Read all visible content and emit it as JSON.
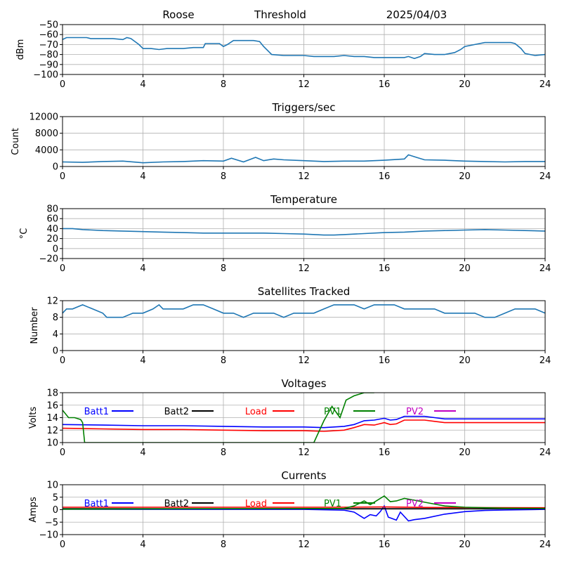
{
  "header": {
    "station": "Roose",
    "mode": "Threshold",
    "date": "2025/04/03"
  },
  "chart_data": [
    {
      "type": "line",
      "title": "",
      "ylabel": "dBm",
      "xlim": [
        0,
        24
      ],
      "xticks": [
        0,
        4,
        8,
        12,
        16,
        20,
        24
      ],
      "ylim": [
        -100,
        -50
      ],
      "yticks": [
        -100,
        -90,
        -80,
        -70,
        -60,
        -50
      ],
      "grid": true,
      "color": "#1f77b4",
      "series": [
        {
          "x": [
            0,
            0.2,
            0.5,
            1.2,
            1.4,
            2.0,
            2.5,
            3.0,
            3.2,
            3.4,
            3.6,
            3.8,
            4.0,
            4.4,
            4.8,
            5.2,
            5.5,
            6.0,
            6.5,
            7.0,
            7.1,
            7.6,
            7.8,
            8.0,
            8.2,
            8.5,
            9.0,
            9.5,
            9.8,
            10.0,
            10.4,
            11.0,
            11.5,
            12.0,
            12.5,
            13.0,
            13.5,
            14.0,
            14.5,
            15.0,
            15.5,
            16.0,
            16.5,
            17.0,
            17.2,
            17.5,
            17.8,
            18.0,
            18.5,
            19.0,
            19.5,
            19.8,
            20.0,
            20.5,
            21.0,
            21.5,
            22.0,
            22.3,
            22.5,
            22.8,
            23.0,
            23.5,
            24.0
          ],
          "y": [
            -65,
            -63,
            -63,
            -63,
            -64,
            -64,
            -64,
            -65,
            -63,
            -64,
            -67,
            -70,
            -74,
            -74,
            -75,
            -74,
            -74,
            -74,
            -73,
            -73,
            -69,
            -69,
            -69,
            -72,
            -70,
            -66,
            -66,
            -66,
            -67,
            -72,
            -80,
            -81,
            -81,
            -81,
            -82,
            -82,
            -82,
            -81,
            -82,
            -82,
            -83,
            -83,
            -83,
            -83,
            -82,
            -84,
            -82,
            -79,
            -80,
            -80,
            -78,
            -75,
            -72,
            -70,
            -68,
            -68,
            -68,
            -68,
            -69,
            -74,
            -79,
            -81,
            -80
          ]
        }
      ]
    },
    {
      "type": "line",
      "title": "Triggers/sec",
      "ylabel": "Count",
      "xlim": [
        0,
        24
      ],
      "xticks": [
        0,
        4,
        8,
        12,
        16,
        20,
        24
      ],
      "ylim": [
        0,
        12000
      ],
      "yticks": [
        0,
        4000,
        8000,
        12000
      ],
      "grid": true,
      "color": "#1f77b4",
      "series": [
        {
          "x": [
            0,
            1,
            2,
            3,
            4,
            5,
            6,
            7,
            8,
            8.4,
            9,
            9.6,
            10,
            10.5,
            11,
            12,
            13,
            14,
            15,
            16,
            17,
            17.2,
            17.6,
            18,
            19,
            20,
            21,
            22,
            23,
            24
          ],
          "y": [
            1100,
            1000,
            1200,
            1300,
            900,
            1100,
            1200,
            1400,
            1300,
            2000,
            1100,
            2200,
            1400,
            1800,
            1600,
            1400,
            1200,
            1300,
            1300,
            1500,
            1800,
            2800,
            2200,
            1600,
            1500,
            1300,
            1200,
            1100,
            1200,
            1200
          ]
        }
      ]
    },
    {
      "type": "line",
      "title": "Temperature",
      "ylabel": "°C",
      "xlim": [
        0,
        24
      ],
      "xticks": [
        0,
        4,
        8,
        12,
        16,
        20,
        24
      ],
      "ylim": [
        -20,
        80
      ],
      "yticks": [
        -20,
        0,
        20,
        40,
        60,
        80
      ],
      "grid": true,
      "color": "#1f77b4",
      "series": [
        {
          "x": [
            0,
            0.5,
            1,
            2,
            3,
            4,
            5,
            6,
            7,
            8,
            9,
            10,
            11,
            12,
            13,
            13.5,
            14,
            15,
            16,
            17,
            18,
            19,
            20,
            21,
            22,
            23,
            24
          ],
          "y": [
            40,
            40,
            38,
            36,
            35,
            34,
            33,
            32,
            31,
            31,
            31,
            31,
            30,
            29,
            27,
            27,
            28,
            30,
            32,
            33,
            35,
            36,
            37,
            38,
            37,
            36,
            35
          ]
        }
      ]
    },
    {
      "type": "line",
      "title": "Satellites Tracked",
      "ylabel": "Number",
      "xlim": [
        0,
        24
      ],
      "xticks": [
        0,
        4,
        8,
        12,
        16,
        20,
        24
      ],
      "ylim": [
        0,
        12
      ],
      "yticks": [
        0,
        4,
        8,
        12
      ],
      "grid": true,
      "color": "#1f77b4",
      "series": [
        {
          "x": [
            0,
            0.2,
            0.5,
            1,
            1.5,
            2,
            2.2,
            2.5,
            3,
            3.5,
            4,
            4.5,
            4.8,
            5,
            5.5,
            6,
            6.5,
            7,
            7.5,
            8,
            8.5,
            9,
            9.5,
            10,
            10.5,
            11,
            11.5,
            12,
            12.5,
            13,
            13.5,
            14,
            14.5,
            15,
            15.5,
            16,
            16.5,
            17,
            17.5,
            18,
            18.5,
            19,
            19.5,
            20,
            20.5,
            21,
            21.5,
            22,
            22.5,
            23,
            23.5,
            24
          ],
          "y": [
            9,
            10,
            10,
            11,
            10,
            9,
            8,
            8,
            8,
            9,
            9,
            10,
            11,
            10,
            10,
            10,
            11,
            11,
            10,
            9,
            9,
            8,
            9,
            9,
            9,
            8,
            9,
            9,
            9,
            10,
            11,
            11,
            11,
            10,
            11,
            11,
            11,
            10,
            10,
            10,
            10,
            9,
            9,
            9,
            9,
            8,
            8,
            9,
            10,
            10,
            10,
            9
          ]
        }
      ]
    },
    {
      "type": "line",
      "title": "Voltages",
      "ylabel": "Volts",
      "xlim": [
        0,
        24
      ],
      "xticks": [
        0,
        4,
        8,
        12,
        16,
        20,
        24
      ],
      "ylim": [
        10,
        18
      ],
      "yticks": [
        10,
        12,
        14,
        16,
        18
      ],
      "grid": true,
      "legend": "top",
      "series": [
        {
          "name": "Batt1",
          "color": "#0000ff",
          "x": [
            0,
            2,
            4,
            6,
            8,
            10,
            12,
            13,
            14,
            14.5,
            15,
            15.5,
            16,
            16.3,
            16.6,
            17,
            18,
            18.5,
            19,
            20,
            22,
            24
          ],
          "y": [
            12.9,
            12.8,
            12.7,
            12.7,
            12.6,
            12.5,
            12.5,
            12.4,
            12.6,
            12.9,
            13.5,
            13.6,
            13.9,
            13.6,
            13.7,
            14.2,
            14.2,
            14.0,
            13.8,
            13.8,
            13.8,
            13.8
          ]
        },
        {
          "name": "Batt2",
          "color": "#000000",
          "x": [],
          "y": []
        },
        {
          "name": "Load",
          "color": "#ff0000",
          "x": [
            0,
            2,
            4,
            6,
            8,
            10,
            12,
            13,
            14,
            14.5,
            15,
            15.5,
            16,
            16.3,
            16.6,
            17,
            18,
            18.5,
            19,
            20,
            22,
            24
          ],
          "y": [
            12.3,
            12.2,
            12.1,
            12.1,
            12.0,
            11.9,
            11.9,
            11.8,
            12.0,
            12.4,
            12.9,
            12.8,
            13.2,
            12.9,
            13.0,
            13.6,
            13.6,
            13.4,
            13.2,
            13.2,
            13.2,
            13.2
          ]
        },
        {
          "name": "PV1",
          "color": "#008000",
          "x": [
            0,
            0.3,
            0.6,
            0.9,
            1.0,
            1.1,
            12.5,
            13.0,
            13.4,
            13.8,
            14.1,
            14.5,
            15.0,
            15.5
          ],
          "y": [
            15.2,
            14.0,
            14.0,
            13.7,
            13.2,
            10.0,
            10.0,
            13.5,
            15.8,
            14.0,
            16.8,
            17.5,
            18.0,
            18.0
          ]
        },
        {
          "name": "PV2",
          "color": "#c000c0",
          "x": [],
          "y": []
        }
      ]
    },
    {
      "type": "line",
      "title": "Currents",
      "ylabel": "Amps",
      "xlim": [
        0,
        24
      ],
      "xticks": [
        0,
        4,
        8,
        12,
        16,
        20,
        24
      ],
      "ylim": [
        -10,
        10
      ],
      "yticks": [
        -10,
        -5,
        0,
        5,
        10
      ],
      "grid": true,
      "legend": "top",
      "series": [
        {
          "name": "Batt1",
          "color": "#0000ff",
          "x": [
            0,
            4,
            8,
            12,
            14,
            14.5,
            15,
            15.3,
            15.6,
            15.8,
            16,
            16.2,
            16.6,
            16.8,
            17.2,
            17.5,
            18,
            19,
            20,
            21,
            22,
            24
          ],
          "y": [
            0.2,
            0.1,
            0.1,
            0.1,
            -0.2,
            -1.0,
            -3.5,
            -2.0,
            -2.5,
            -0.8,
            1.5,
            -3.0,
            -4.2,
            -1.0,
            -4.5,
            -4.0,
            -3.5,
            -1.8,
            -0.8,
            -0.3,
            -0.1,
            0.1
          ]
        },
        {
          "name": "Batt2",
          "color": "#000000",
          "x": [
            0,
            24
          ],
          "y": [
            0.4,
            0.4
          ]
        },
        {
          "name": "Load",
          "color": "#ff0000",
          "x": [
            0,
            14,
            16,
            18,
            24
          ],
          "y": [
            1.0,
            1.0,
            1.1,
            0.9,
            0.8
          ]
        },
        {
          "name": "PV1",
          "color": "#008000",
          "x": [
            0,
            14,
            14.5,
            15,
            15.3,
            15.7,
            16,
            16.3,
            16.6,
            17,
            17.5,
            18,
            19,
            20,
            22,
            24
          ],
          "y": [
            0.2,
            0.5,
            1.5,
            3.5,
            2.0,
            4.0,
            5.5,
            3.2,
            3.5,
            4.5,
            3.8,
            3.0,
            1.5,
            1.0,
            0.6,
            0.5
          ]
        },
        {
          "name": "PV2",
          "color": "#c000c0",
          "x": [],
          "y": []
        }
      ]
    }
  ]
}
